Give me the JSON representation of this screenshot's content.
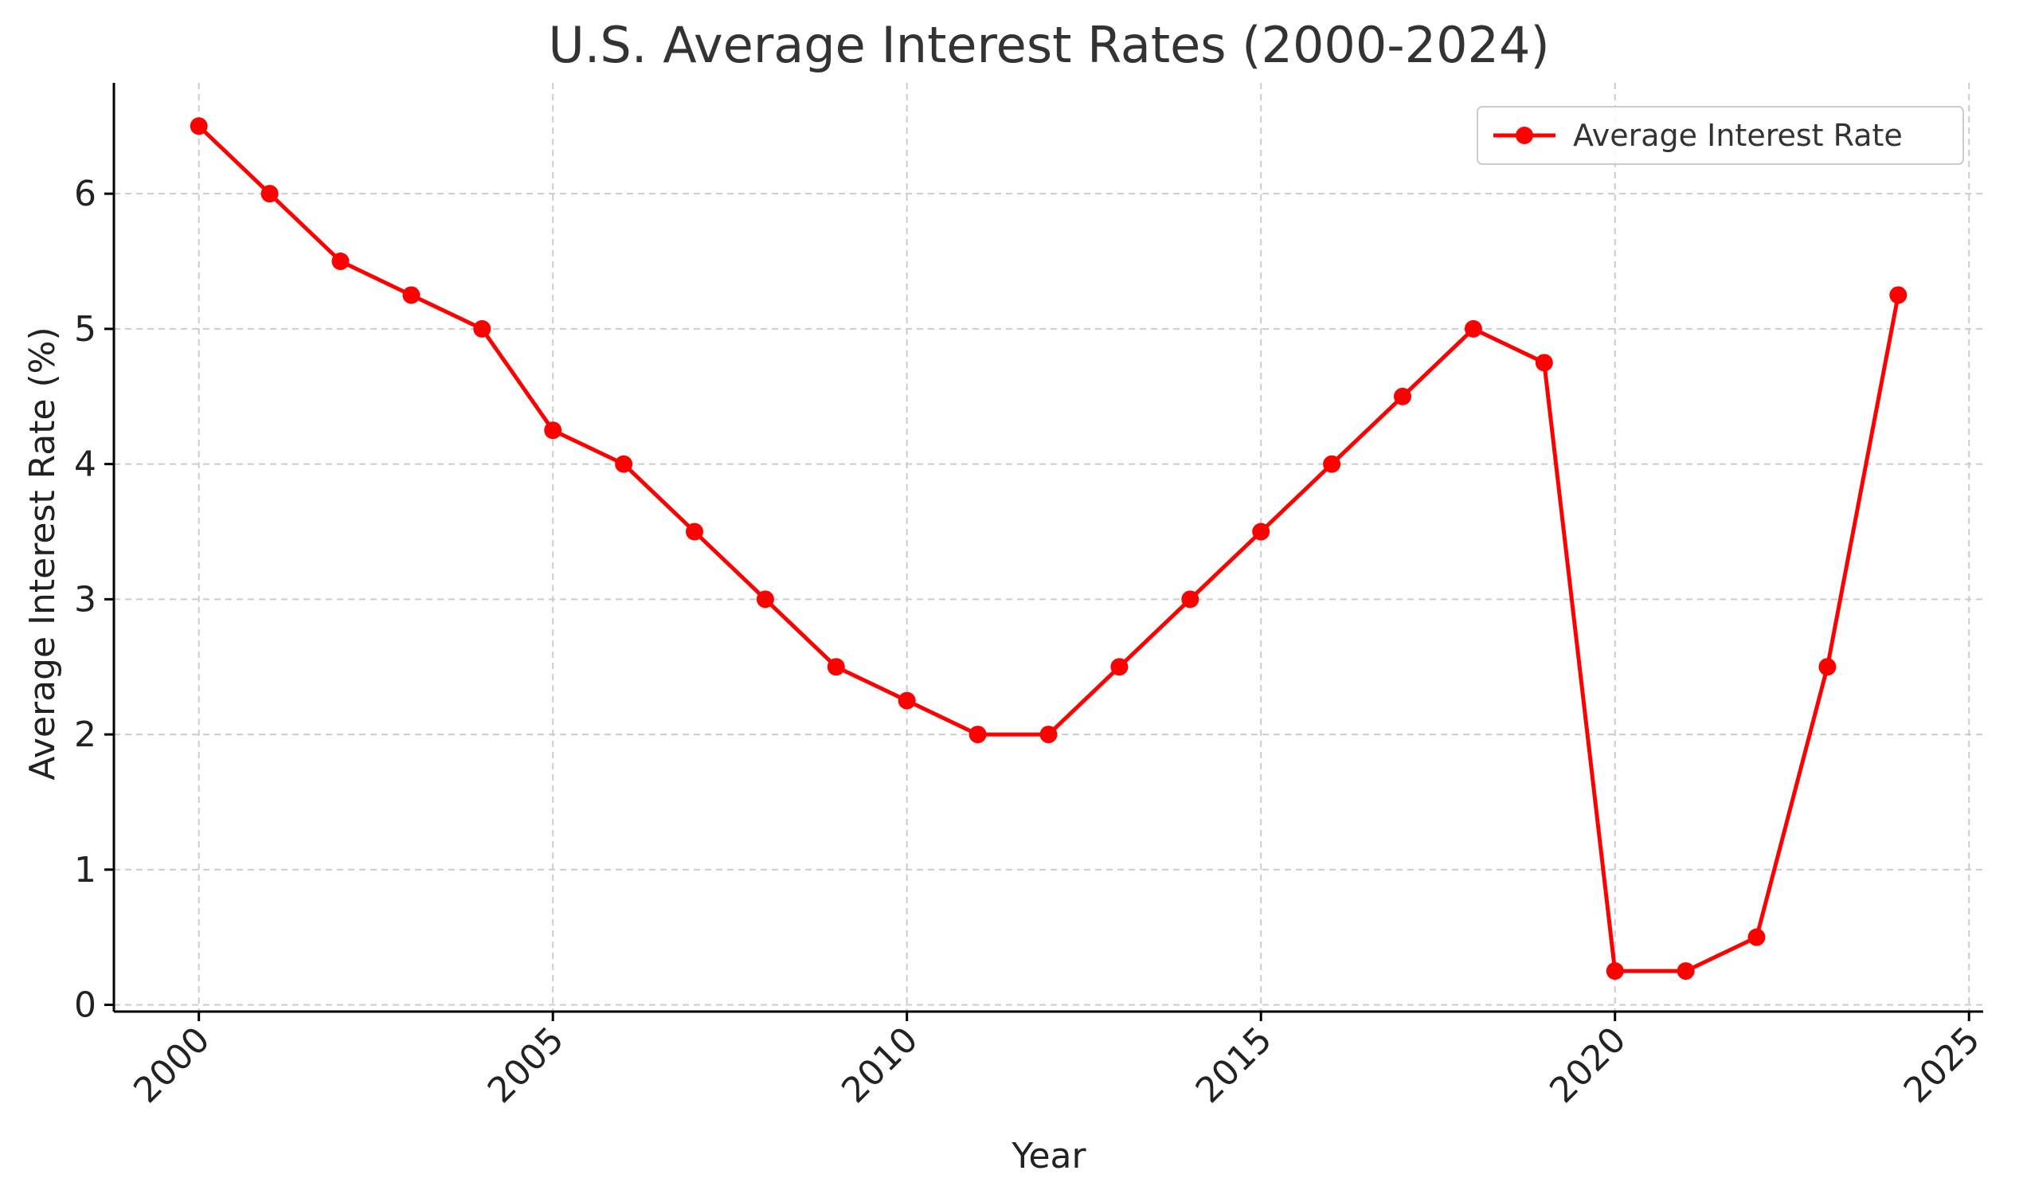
{
  "chart_data": {
    "type": "line",
    "title": "U.S. Average Interest Rates (2000-2024)",
    "xlabel": "Year",
    "ylabel": "Average Interest Rate (%)",
    "xlim": [
      1998.8,
      2025.2
    ],
    "ylim": [
      -0.05,
      6.82
    ],
    "x_ticks": [
      2000,
      2005,
      2010,
      2015,
      2020,
      2025
    ],
    "y_ticks": [
      0,
      1,
      2,
      3,
      4,
      5,
      6
    ],
    "grid": true,
    "legend_position": "top-right",
    "series": [
      {
        "name": "Average Interest Rate",
        "color": "#ff0000",
        "marker": "circle",
        "x": [
          2000,
          2001,
          2002,
          2003,
          2004,
          2005,
          2006,
          2007,
          2008,
          2009,
          2010,
          2011,
          2012,
          2013,
          2014,
          2015,
          2016,
          2017,
          2018,
          2019,
          2020,
          2021,
          2022,
          2023,
          2024
        ],
        "y": [
          6.5,
          6.0,
          5.5,
          5.25,
          5.0,
          4.25,
          4.0,
          3.5,
          3.0,
          2.5,
          2.25,
          2.0,
          2.0,
          2.5,
          3.0,
          3.5,
          4.0,
          4.5,
          5.0,
          4.75,
          0.25,
          0.25,
          0.5,
          2.5,
          5.25
        ]
      }
    ]
  }
}
